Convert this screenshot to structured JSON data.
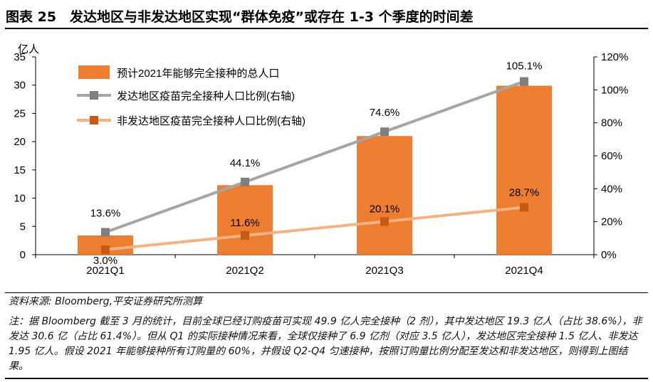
{
  "figure": {
    "title": "图表 25　发达地区与非发达地区实现“群体免疫”或存在 1-3 个季度的时间差",
    "source": "资料来源: Bloomberg,平安证券研究所测算",
    "note": "注：据 Bloomberg 截至 3 月的统计，目前全球已经订购疫苗可实现 49.9 亿人完全接种（2 剂），其中发达地区 19.3 亿人（占比 38.6%），非发达 30.6 亿（占比 61.4%）。但从 Q1 的实际接种情况来看，全球仅接种了 6.9 亿剂（对应 3.5 亿人），发达地区完全接种 1.5 亿人、非发达 1.95 亿人。假设 2021 年能够接种所有订购量的 60%，并假设 Q2-Q4 匀速接种，按照订购量比例分配至发达和非发达地区，则得到上图结果。"
  },
  "chart_data": {
    "type": "bar+line",
    "categories": [
      "2021Q1",
      "2021Q2",
      "2021Q3",
      "2021Q4"
    ],
    "left_axis": {
      "unit_label": "亿人",
      "min": 0,
      "max": 35,
      "ticks": [
        "0",
        "5",
        "10",
        "15",
        "20",
        "25",
        "30",
        "35"
      ]
    },
    "right_axis": {
      "min": 0,
      "max": 120,
      "ticks": [
        "0%",
        "20%",
        "40%",
        "60%",
        "80%",
        "100%",
        "120%"
      ]
    },
    "series": [
      {
        "name": "预计2021年能够完全接种的总人口",
        "kind": "bar",
        "axis": "left",
        "color": "#ED7D31",
        "values": [
          3.4,
          12.3,
          21.0,
          29.9
        ]
      },
      {
        "name": "发达地区疫苗完全接种人口比例(右轴)",
        "kind": "line",
        "axis": "right",
        "color": "#A5A5A5",
        "marker_color": "#7F7F7F",
        "values": [
          13.6,
          44.1,
          74.6,
          105.1
        ],
        "labels": [
          "13.6%",
          "44.1%",
          "74.6%",
          "105.1%"
        ]
      },
      {
        "name": "非发达地区疫苗完全接种人口比例(右轴)",
        "kind": "line",
        "axis": "right",
        "color": "#F4B183",
        "marker_color": "#C55A11",
        "values": [
          3.0,
          11.6,
          20.1,
          28.7
        ],
        "labels": [
          "3.0%",
          "11.6%",
          "20.1%",
          "28.7%"
        ]
      }
    ],
    "legend_position": "top-left",
    "grid": false
  }
}
